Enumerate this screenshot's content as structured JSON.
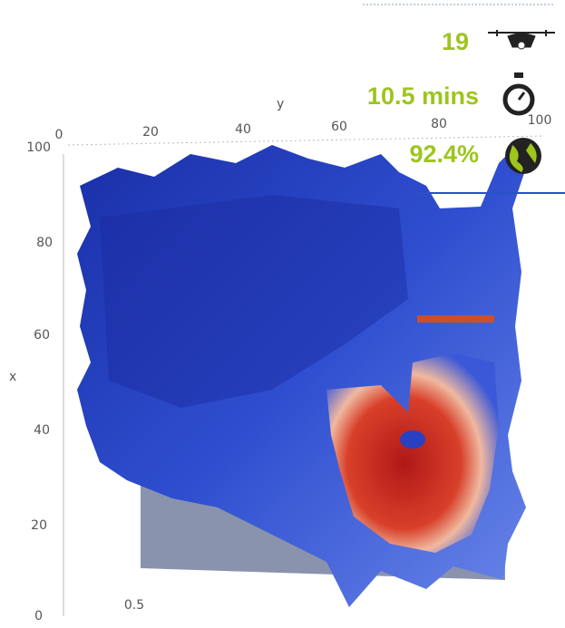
{
  "stats": {
    "drones": "19",
    "time": "10.5 mins",
    "coverage": "92.4%"
  },
  "axes": {
    "y_label": "y",
    "x_label": "x",
    "y_ticks": [
      "0",
      "20",
      "40",
      "60",
      "80",
      "100"
    ],
    "x_ticks": [
      "100",
      "80",
      "60",
      "40",
      "20",
      "0"
    ],
    "z_tick": "0.5"
  }
}
